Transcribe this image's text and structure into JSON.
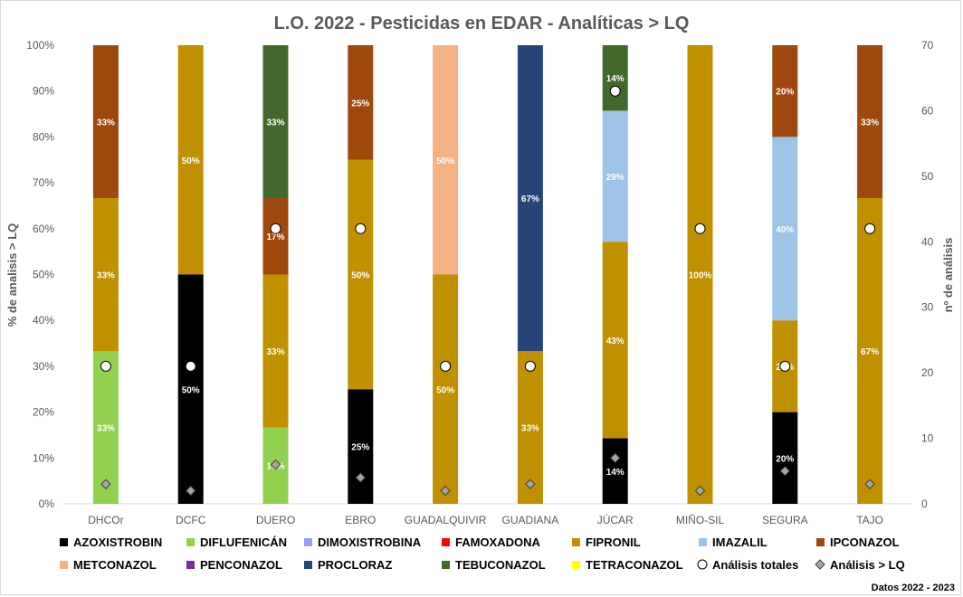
{
  "chart_data": {
    "type": "bar",
    "stacked": true,
    "title": "L.O. 2022 - Pesticidas en EDAR - Analíticas > LQ",
    "ylabel": "% de analisis > LQ",
    "y2label": "nº de análisis",
    "ylim": [
      0,
      100
    ],
    "y2lim": [
      0,
      70
    ],
    "grid": false,
    "legend_position": "bottom",
    "footer": "Datos 2022 - 2023",
    "y_ticks": [
      "0%",
      "10%",
      "20%",
      "30%",
      "40%",
      "50%",
      "60%",
      "70%",
      "80%",
      "90%",
      "100%"
    ],
    "y2_ticks": [
      "0",
      "10",
      "20",
      "30",
      "40",
      "50",
      "60",
      "70"
    ],
    "categories": [
      "DHCOr",
      "DCFC",
      "DUERO",
      "EBRO",
      "GUADALQUIVIR",
      "GUADIANA",
      "JÚCAR",
      "MIÑO-SIL",
      "SEGURA",
      "TAJO"
    ],
    "series": [
      {
        "name": "AZOXISTROBIN",
        "color": "#000000",
        "values": [
          0,
          50,
          0,
          25,
          0,
          0,
          14.29,
          0,
          20,
          0
        ],
        "labels": [
          "",
          "50%",
          "",
          "25%",
          "",
          "",
          "14%",
          "",
          "20%",
          ""
        ]
      },
      {
        "name": "DIFLUFENICÁN",
        "color": "#92d050",
        "values": [
          33.33,
          0,
          16.67,
          0,
          0,
          0,
          0,
          0,
          0,
          0
        ],
        "labels": [
          "33%",
          "",
          "17%",
          "",
          "",
          "",
          "",
          "",
          "",
          ""
        ]
      },
      {
        "name": "DIMOXISTROBINA",
        "color": "#9999ff",
        "values": [
          0,
          0,
          0,
          0,
          0,
          0,
          0,
          0,
          0,
          0
        ],
        "labels": [
          "",
          "",
          "",
          "",
          "",
          "",
          "",
          "",
          "",
          ""
        ]
      },
      {
        "name": "FAMOXADONA",
        "color": "#ff0000",
        "values": [
          0,
          0,
          0,
          0,
          0,
          0,
          0,
          0,
          0,
          0
        ],
        "labels": [
          "",
          "",
          "",
          "",
          "",
          "",
          "",
          "",
          "",
          ""
        ]
      },
      {
        "name": "FIPRONIL",
        "color": "#bf9000",
        "values": [
          33.33,
          50,
          33.33,
          50,
          50,
          33.33,
          42.86,
          100,
          20,
          66.67
        ],
        "labels": [
          "33%",
          "50%",
          "33%",
          "50%",
          "50%",
          "33%",
          "43%",
          "100%",
          "20%",
          "67%"
        ]
      },
      {
        "name": "IMAZALIL",
        "color": "#9dc3e6",
        "values": [
          0,
          0,
          0,
          0,
          0,
          0,
          28.57,
          0,
          40,
          0
        ],
        "labels": [
          "",
          "",
          "",
          "",
          "",
          "",
          "29%",
          "",
          "40%",
          ""
        ]
      },
      {
        "name": "IPCONAZOL",
        "color": "#9e480e",
        "values": [
          33.33,
          0,
          16.67,
          25,
          0,
          0,
          0,
          0,
          20,
          33.33
        ],
        "labels": [
          "33%",
          "",
          "17%",
          "25%",
          "",
          "",
          "",
          "",
          "20%",
          "33%"
        ]
      },
      {
        "name": "METCONAZOL",
        "color": "#f4b183",
        "values": [
          0,
          0,
          0,
          0,
          50,
          0,
          0,
          0,
          0,
          0
        ],
        "labels": [
          "",
          "",
          "",
          "",
          "50%",
          "",
          "",
          "",
          "",
          ""
        ]
      },
      {
        "name": "PENCONAZOL",
        "color": "#7030a0",
        "values": [
          0,
          0,
          0,
          0,
          0,
          0,
          0,
          0,
          0,
          0
        ],
        "labels": [
          "",
          "",
          "",
          "",
          "",
          "",
          "",
          "",
          "",
          ""
        ]
      },
      {
        "name": "PROCLORAZ",
        "color": "#264478",
        "values": [
          0,
          0,
          0,
          0,
          0,
          66.67,
          0,
          0,
          0,
          0
        ],
        "labels": [
          "",
          "",
          "",
          "",
          "",
          "67%",
          "",
          "",
          "",
          ""
        ]
      },
      {
        "name": "TEBUCONAZOL",
        "color": "#43682b",
        "values": [
          0,
          0,
          33.33,
          0,
          0,
          0,
          14.29,
          0,
          0,
          0
        ],
        "labels": [
          "",
          "",
          "33%",
          "",
          "",
          "",
          "14%",
          "",
          "",
          ""
        ]
      },
      {
        "name": "TETRACONAZOL",
        "color": "#ffff00",
        "values": [
          0,
          0,
          0,
          0,
          0,
          0,
          0,
          0,
          0,
          0
        ],
        "labels": [
          "",
          "",
          "",
          "",
          "",
          "",
          "",
          "",
          "",
          ""
        ]
      }
    ],
    "markers": [
      {
        "name": "Análisis totales",
        "shape": "circle",
        "axis": "y2",
        "values": [
          21,
          21,
          42,
          42,
          21,
          21,
          63,
          42,
          21,
          42
        ]
      },
      {
        "name": "Análisis > LQ",
        "shape": "diamond",
        "axis": "y2",
        "values": [
          3,
          2,
          6,
          4,
          2,
          3,
          7,
          2,
          5,
          3
        ]
      }
    ]
  }
}
